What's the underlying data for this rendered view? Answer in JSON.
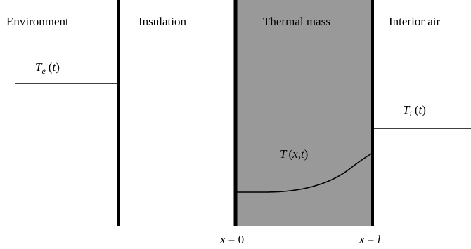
{
  "regions": {
    "environment": "Environment",
    "insulation": "Insulation",
    "thermal_mass": "Thermal mass",
    "interior_air": "Interior air"
  },
  "symbols": {
    "te": {
      "base": "T",
      "sub": "e",
      "arg": "t"
    },
    "ti": {
      "base": "T",
      "sub": "i",
      "arg": "t"
    },
    "txt": {
      "base": "T",
      "arg_x": "x",
      "arg_sep": ",",
      "arg_t": "t"
    }
  },
  "positions": {
    "x0": {
      "var": "x",
      "eq": " = ",
      "val": "0"
    },
    "xl": {
      "var": "x",
      "eq": " = ",
      "val": "l"
    }
  },
  "colors": {
    "thermal_mass_fill": "#999999",
    "lines": "#000000",
    "background": "#ffffff"
  }
}
